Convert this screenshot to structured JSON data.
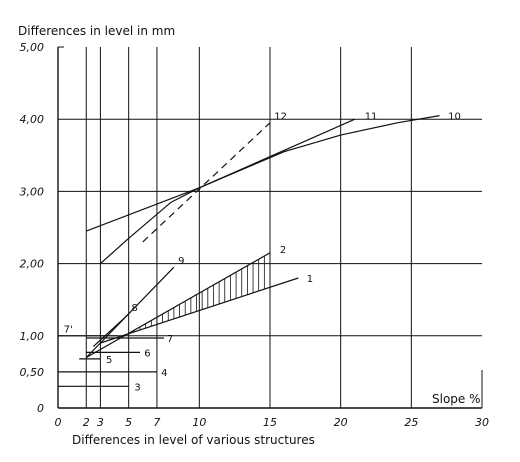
{
  "chart_data": {
    "type": "line",
    "title": "Differences in level in mm",
    "xlabel": "Differences in level of various structures",
    "x_unit_label": "Slope %",
    "xlim": [
      0,
      30
    ],
    "ylim": [
      0,
      5
    ],
    "x_ticks": [
      {
        "value": 0,
        "label": "0"
      },
      {
        "value": 2,
        "label": "2"
      },
      {
        "value": 3,
        "label": "3"
      },
      {
        "value": 5,
        "label": "5"
      },
      {
        "value": 7,
        "label": "7"
      },
      {
        "value": 10,
        "label": "10"
      },
      {
        "value": 15,
        "label": "15"
      },
      {
        "value": 20,
        "label": "20"
      },
      {
        "value": 25,
        "label": "25"
      },
      {
        "value": 30,
        "label": "30"
      }
    ],
    "y_ticks": [
      {
        "value": 0,
        "label": "0"
      },
      {
        "value": 0.5,
        "label": "0,50"
      },
      {
        "value": 1,
        "label": "1,00"
      },
      {
        "value": 2,
        "label": "2,00"
      },
      {
        "value": 3,
        "label": "3,00"
      },
      {
        "value": 4,
        "label": "4,00"
      },
      {
        "value": 5,
        "label": "5,00"
      }
    ],
    "x_grid": [
      2,
      3,
      5,
      7,
      10,
      15,
      20,
      25
    ],
    "y_grid": [
      1,
      2,
      3,
      4
    ],
    "series": [
      {
        "name": "1",
        "style": "solid",
        "points": [
          [
            3,
            0.9
          ],
          [
            17,
            1.8
          ]
        ],
        "label_at": [
          17.6,
          1.8
        ]
      },
      {
        "name": "2",
        "style": "solid",
        "points": [
          [
            2,
            0.7
          ],
          [
            15,
            2.15
          ]
        ],
        "label_at": [
          15.7,
          2.2
        ]
      },
      {
        "name": "3",
        "style": "solid",
        "points": [
          [
            0,
            0.3
          ],
          [
            5,
            0.3
          ]
        ],
        "label_at": [
          5.4,
          0.3
        ]
      },
      {
        "name": "4",
        "style": "solid",
        "points": [
          [
            0,
            0.5
          ],
          [
            7,
            0.5
          ]
        ],
        "label_at": [
          7.3,
          0.5
        ]
      },
      {
        "name": "5",
        "style": "solid",
        "points": [
          [
            1.5,
            0.68
          ],
          [
            3,
            0.68
          ]
        ],
        "label_at": [
          3.4,
          0.68
        ]
      },
      {
        "name": "6",
        "style": "solid",
        "points": [
          [
            2,
            0.77
          ],
          [
            5.8,
            0.77
          ]
        ],
        "label_at": [
          6.1,
          0.77
        ]
      },
      {
        "name": "7",
        "style": "solid",
        "points": [
          [
            2,
            0.97
          ],
          [
            7.5,
            0.97
          ]
        ],
        "label_at": [
          7.7,
          0.97
        ]
      },
      {
        "name": "7'",
        "style": "solid",
        "points": [
          [
            0,
            1.0
          ],
          [
            4.2,
            1.0
          ]
        ],
        "label_at": [
          0.4,
          1.1
        ]
      },
      {
        "name": "8",
        "style": "solid",
        "points": [
          [
            2.5,
            0.85
          ],
          [
            5,
            1.3
          ]
        ],
        "label_at": [
          5.2,
          1.4
        ]
      },
      {
        "name": "9",
        "style": "solid",
        "points": [
          [
            2,
            0.7
          ],
          [
            8.2,
            1.95
          ]
        ],
        "label_at": [
          8.5,
          2.05
        ]
      },
      {
        "name": "10",
        "style": "solid",
        "points": [
          [
            3,
            2.0
          ],
          [
            5,
            2.35
          ],
          [
            8,
            2.85
          ],
          [
            10,
            3.05
          ],
          [
            13,
            3.3
          ],
          [
            16,
            3.55
          ],
          [
            20,
            3.78
          ],
          [
            24,
            3.95
          ],
          [
            27,
            4.05
          ]
        ],
        "label_at": [
          27.6,
          4.05
        ]
      },
      {
        "name": "11",
        "style": "solid",
        "points": [
          [
            2,
            2.45
          ],
          [
            10,
            3.05
          ],
          [
            21,
            4.0
          ]
        ],
        "label_at": [
          21.7,
          4.05
        ]
      },
      {
        "name": "12",
        "style": "dashed",
        "points": [
          [
            6,
            2.3
          ],
          [
            15,
            3.95
          ]
        ],
        "label_at": [
          15.3,
          4.05
        ]
      }
    ],
    "hatched_region": {
      "between": [
        "2",
        "1"
      ],
      "x_range": [
        3,
        17
      ]
    },
    "grid": true
  }
}
